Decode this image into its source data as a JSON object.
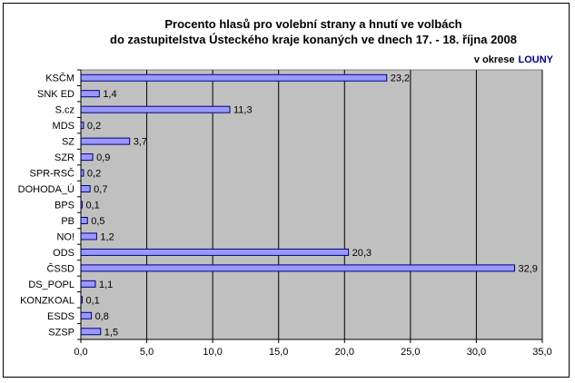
{
  "chart_data": {
    "type": "bar",
    "orientation": "horizontal",
    "title_lines": [
      "Procento hlasů pro volební strany a hnutí ve volbách",
      "do zastupitelstva Ústeckého kraje konaných ve dnech 17. - 18. října 2008"
    ],
    "region_prefix": "v okrese",
    "region_name": "LOUNY",
    "categories": [
      "KSČM",
      "SNK ED",
      "S.cz",
      "MDS",
      "SZ",
      "SZR",
      "SPR-RSČ",
      "DOHODA_Ú",
      "BPS",
      "PB",
      "NO!",
      "ODS",
      "ČSSD",
      "DS_POPL",
      "KONZKOAL",
      "ESDS",
      "SZSP"
    ],
    "values": [
      23.2,
      1.4,
      11.3,
      0.2,
      3.7,
      0.9,
      0.2,
      0.7,
      0.1,
      0.5,
      1.2,
      20.3,
      32.9,
      1.1,
      0.1,
      0.8,
      1.5
    ],
    "value_labels": [
      "23,2",
      "1,4",
      "11,3",
      "0,2",
      "3,7",
      "0,9",
      "0,2",
      "0,7",
      "0,1",
      "0,5",
      "1,2",
      "20,3",
      "32,9",
      "1,1",
      "0,1",
      "0,8",
      "1,5"
    ],
    "xlim": [
      0,
      35
    ],
    "xticks": [
      0,
      5,
      10,
      15,
      20,
      25,
      30,
      35
    ],
    "xtick_labels": [
      "0,0",
      "5,0",
      "10,0",
      "15,0",
      "20,0",
      "25,0",
      "30,0",
      "35,0"
    ],
    "grid": true,
    "legend": "none",
    "colors": {
      "plot_bg": "#c0c0c0",
      "bar_fill": "#9999ff",
      "bar_stroke": "#000080",
      "grid": "#000000",
      "region_name": "#000080"
    }
  }
}
